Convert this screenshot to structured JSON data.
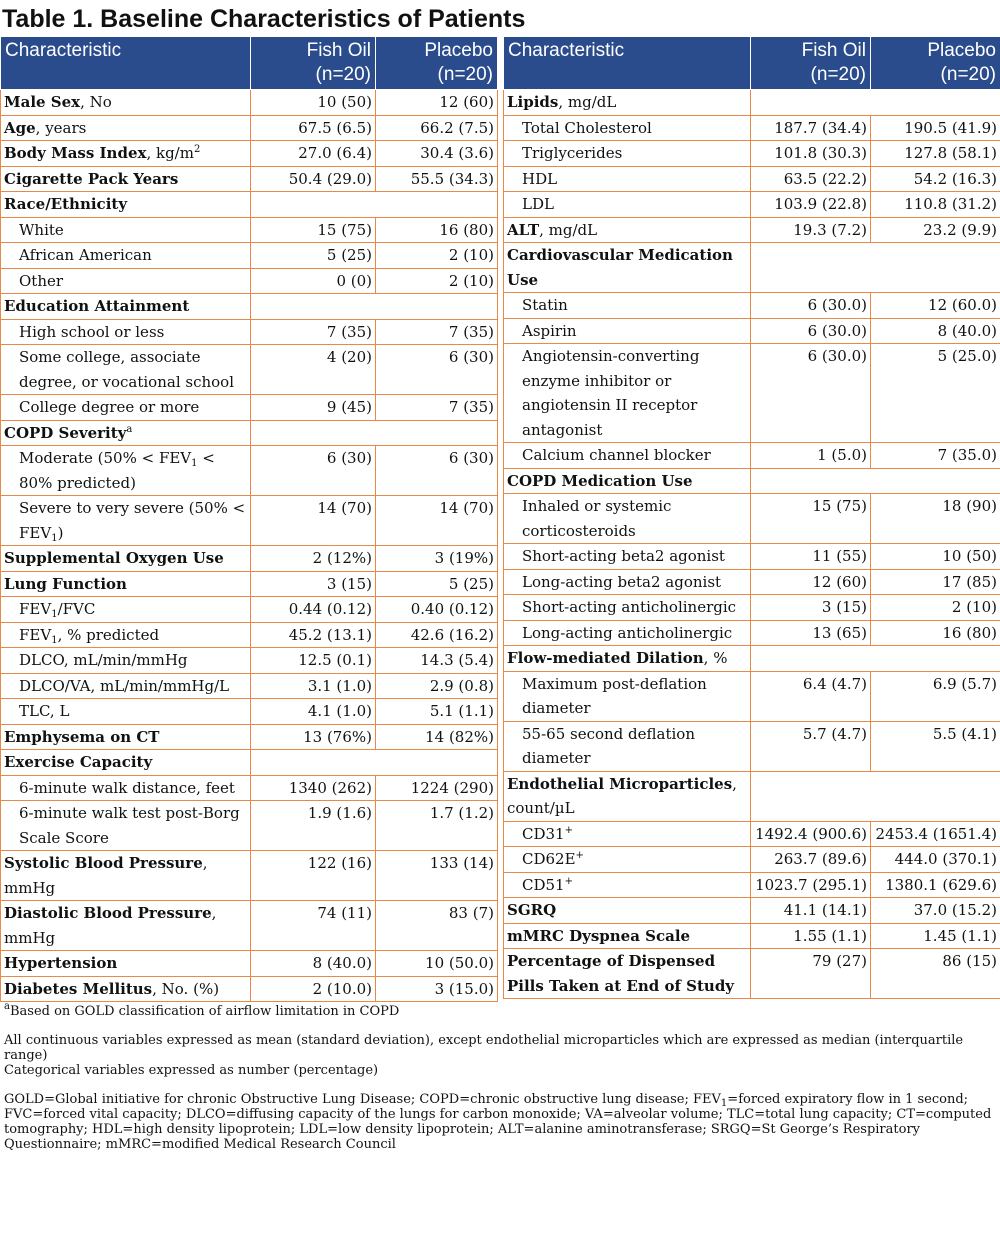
{
  "title": "Table 1. Baseline Characteristics of Patients",
  "header": [
    [
      "Characteristic"
    ],
    [
      "Fish Oil",
      "(n=20)"
    ],
    [
      "Placebo",
      "(n=20)"
    ]
  ],
  "tables": [
    {
      "rows": [
        {
          "label": [
            {
              "text": "Male Sex",
              "style": "bold"
            },
            {
              "text": ", No"
            }
          ],
          "values": [
            "10 (50)",
            "12 (60)"
          ]
        },
        {
          "label": [
            {
              "text": "Age",
              "style": "bold"
            },
            {
              "text": ", years"
            }
          ],
          "values": [
            "67.5 (6.5)",
            "66.2 (7.5)"
          ]
        },
        {
          "label": [
            {
              "text": "Body Mass Index",
              "style": "bold"
            },
            {
              "text": ", kg/m"
            },
            {
              "text": "2",
              "style": "sup"
            }
          ],
          "values": [
            "27.0 (6.4)",
            "30.4 (3.6)"
          ]
        },
        {
          "label": [
            {
              "text": "Cigarette Pack Years",
              "style": "bold"
            }
          ],
          "values": [
            "50.4 (29.0)",
            "55.5 (34.3)"
          ]
        },
        {
          "label": [
            {
              "text": "Race/Ethnicity",
              "style": "bold"
            }
          ]
        },
        {
          "indent": true,
          "label": [
            {
              "text": "White"
            }
          ],
          "values": [
            "15 (75)",
            "16 (80)"
          ]
        },
        {
          "indent": true,
          "label": [
            {
              "text": "African American"
            }
          ],
          "values": [
            "5 (25)",
            "2 (10)"
          ]
        },
        {
          "indent": true,
          "label": [
            {
              "text": "Other"
            }
          ],
          "values": [
            "0 (0)",
            "2 (10)"
          ]
        },
        {
          "label": [
            {
              "text": "Education Attainment",
              "style": "bold"
            }
          ]
        },
        {
          "indent": true,
          "label": [
            {
              "text": "High school or less"
            }
          ],
          "values": [
            "7 (35)",
            "7 (35)"
          ]
        },
        {
          "indent": true,
          "label": [
            {
              "text": "Some college, associate degree, or vocational school"
            }
          ],
          "values": [
            "4 (20)",
            "6 (30)"
          ]
        },
        {
          "indent": true,
          "label": [
            {
              "text": "College degree or more"
            }
          ],
          "values": [
            "9 (45)",
            "7 (35)"
          ]
        },
        {
          "label": [
            {
              "text": "COPD Severity",
              "style": "bold"
            },
            {
              "text": "a",
              "style": "sup"
            }
          ]
        },
        {
          "indent": true,
          "label": [
            {
              "text": "Moderate (50% < FEV"
            },
            {
              "text": "1",
              "style": "sub"
            },
            {
              "text": " < 80% predicted)"
            }
          ],
          "values": [
            "6 (30)",
            "6 (30)"
          ]
        },
        {
          "indent": true,
          "label": [
            {
              "text": "Severe to very severe (50% < FEV"
            },
            {
              "text": "1",
              "style": "sub"
            },
            {
              "text": ")"
            }
          ],
          "values": [
            "14 (70)",
            "14 (70)"
          ]
        },
        {
          "label": [
            {
              "text": "Supplemental Oxygen Use",
              "style": "bold"
            }
          ],
          "values": [
            "2 (12%)",
            "3 (19%)"
          ]
        },
        {
          "label": [
            {
              "text": "Lung Function",
              "style": "bold"
            }
          ],
          "values": [
            "3 (15)",
            "5 (25)"
          ]
        },
        {
          "indent": true,
          "label": [
            {
              "text": "FEV"
            },
            {
              "text": "1",
              "style": "sub"
            },
            {
              "text": "/FVC"
            }
          ],
          "values": [
            "0.44 (0.12)",
            "0.40 (0.12)"
          ]
        },
        {
          "indent": true,
          "label": [
            {
              "text": "FEV"
            },
            {
              "text": "1",
              "style": "sub"
            },
            {
              "text": ", % predicted"
            }
          ],
          "values": [
            "45.2 (13.1)",
            "42.6 (16.2)"
          ]
        },
        {
          "indent": true,
          "label": [
            {
              "text": "DLCO, mL/min/mmHg"
            }
          ],
          "values": [
            "12.5 (0.1)",
            "14.3 (5.4)"
          ]
        },
        {
          "indent": true,
          "label": [
            {
              "text": "DLCO/VA, mL/min/mmHg/L"
            }
          ],
          "values": [
            "3.1 (1.0)",
            "2.9 (0.8)"
          ]
        },
        {
          "indent": true,
          "label": [
            {
              "text": "TLC, L"
            }
          ],
          "values": [
            "4.1 (1.0)",
            "5.1 (1.1)"
          ]
        },
        {
          "label": [
            {
              "text": "Emphysema on CT",
              "style": "bold"
            }
          ],
          "values": [
            "13 (76%)",
            "14 (82%)"
          ]
        },
        {
          "label": [
            {
              "text": "Exercise Capacity",
              "style": "bold"
            }
          ]
        },
        {
          "indent": true,
          "label": [
            {
              "text": "6-minute walk distance, feet"
            }
          ],
          "values": [
            "1340 (262)",
            "1224 (290)"
          ]
        },
        {
          "indent": true,
          "label": [
            {
              "text": "6-minute walk test post-Borg Scale Score"
            }
          ],
          "values": [
            "1.9 (1.6)",
            "1.7 (1.2)"
          ]
        },
        {
          "label": [
            {
              "text": "Systolic Blood Pressure",
              "style": "bold"
            },
            {
              "text": ", mmHg"
            }
          ],
          "values": [
            "122 (16)",
            "133 (14)"
          ]
        },
        {
          "label": [
            {
              "text": "Diastolic Blood Pressure",
              "style": "bold"
            },
            {
              "text": ", mmHg"
            }
          ],
          "values": [
            "74 (11)",
            "83 (7)"
          ]
        },
        {
          "label": [
            {
              "text": "Hypertension",
              "style": "bold"
            }
          ],
          "values": [
            "8 (40.0)",
            "10 (50.0)"
          ]
        },
        {
          "label": [
            {
              "text": "Diabetes Mellitus",
              "style": "bold"
            },
            {
              "text": ", No. (%)"
            }
          ],
          "values": [
            "2 (10.0)",
            "3 (15.0)"
          ]
        }
      ]
    },
    {
      "rows": [
        {
          "label": [
            {
              "text": "Lipids",
              "style": "bold"
            },
            {
              "text": ", mg/dL"
            }
          ]
        },
        {
          "indent": true,
          "label": [
            {
              "text": "Total Cholesterol"
            }
          ],
          "values": [
            "187.7 (34.4)",
            "190.5 (41.9)"
          ]
        },
        {
          "indent": true,
          "label": [
            {
              "text": "Triglycerides"
            }
          ],
          "values": [
            "101.8 (30.3)",
            "127.8 (58.1)"
          ]
        },
        {
          "indent": true,
          "label": [
            {
              "text": "HDL"
            }
          ],
          "values": [
            "63.5 (22.2)",
            "54.2 (16.3)"
          ]
        },
        {
          "indent": true,
          "label": [
            {
              "text": "LDL"
            }
          ],
          "values": [
            "103.9 (22.8)",
            "110.8 (31.2)"
          ]
        },
        {
          "label": [
            {
              "text": "ALT",
              "style": "bold"
            },
            {
              "text": ", mg/dL"
            }
          ],
          "values": [
            "19.3 (7.2)",
            "23.2 (9.9)"
          ]
        },
        {
          "label": [
            {
              "text": "Cardiovascular Medication Use",
              "style": "bold"
            }
          ]
        },
        {
          "indent": true,
          "label": [
            {
              "text": "Statin"
            }
          ],
          "values": [
            "6 (30.0)",
            "12 (60.0)"
          ]
        },
        {
          "indent": true,
          "label": [
            {
              "text": "Aspirin"
            }
          ],
          "values": [
            "6 (30.0)",
            "8 (40.0)"
          ]
        },
        {
          "indent": true,
          "label": [
            {
              "text": "Angiotensin-converting enzyme inhibitor or angiotensin II receptor antagonist"
            }
          ],
          "values": [
            "6 (30.0)",
            "5 (25.0)"
          ]
        },
        {
          "indent": true,
          "label": [
            {
              "text": "Calcium channel blocker"
            }
          ],
          "values": [
            "1 (5.0)",
            "7 (35.0)"
          ]
        },
        {
          "label": [
            {
              "text": "COPD Medication Use",
              "style": "bold"
            }
          ]
        },
        {
          "indent": true,
          "label": [
            {
              "text": "Inhaled or systemic corticosteroids"
            }
          ],
          "values": [
            "15 (75)",
            "18 (90)"
          ]
        },
        {
          "indent": true,
          "label": [
            {
              "text": "Short-acting beta2 agonist"
            }
          ],
          "values": [
            "11 (55)",
            "10 (50)"
          ]
        },
        {
          "indent": true,
          "label": [
            {
              "text": "Long-acting beta2 agonist"
            }
          ],
          "values": [
            "12 (60)",
            "17 (85)"
          ]
        },
        {
          "indent": true,
          "label": [
            {
              "text": "Short-acting anticholinergic"
            }
          ],
          "values": [
            "3 (15)",
            "2 (10)"
          ]
        },
        {
          "indent": true,
          "label": [
            {
              "text": "Long-acting anticholinergic"
            }
          ],
          "values": [
            "13 (65)",
            "16 (80)"
          ]
        },
        {
          "label": [
            {
              "text": "Flow-mediated Dilation",
              "style": "bold"
            },
            {
              "text": ", %"
            }
          ]
        },
        {
          "indent": true,
          "label": [
            {
              "text": "Maximum post-deflation diameter"
            }
          ],
          "values": [
            "6.4 (4.7)",
            "6.9 (5.7)"
          ]
        },
        {
          "indent": true,
          "label": [
            {
              "text": "55-65 second deflation diameter"
            }
          ],
          "values": [
            "5.7 (4.7)",
            "5.5 (4.1)"
          ]
        },
        {
          "label": [
            {
              "text": "Endothelial Microparticles",
              "style": "bold"
            },
            {
              "text": ", count/µL"
            }
          ]
        },
        {
          "indent": true,
          "label": [
            {
              "text": "CD31"
            },
            {
              "text": "+",
              "style": "sup"
            }
          ],
          "values": [
            "1492.4 (900.6)",
            "2453.4 (1651.4)"
          ]
        },
        {
          "indent": true,
          "label": [
            {
              "text": "CD62E"
            },
            {
              "text": "+",
              "style": "sup"
            }
          ],
          "values": [
            "263.7 (89.6)",
            "444.0 (370.1)"
          ]
        },
        {
          "indent": true,
          "label": [
            {
              "text": "CD51"
            },
            {
              "text": "+",
              "style": "sup"
            }
          ],
          "values": [
            "1023.7 (295.1)",
            "1380.1 (629.6)"
          ]
        },
        {
          "label": [
            {
              "text": "SGRQ",
              "style": "bold"
            }
          ],
          "values": [
            "41.1 (14.1)",
            "37.0 (15.2)"
          ]
        },
        {
          "label": [
            {
              "text": "mMRC Dyspnea Scale",
              "style": "bold"
            }
          ],
          "values": [
            "1.55 (1.1)",
            "1.45 (1.1)"
          ]
        },
        {
          "label": [
            {
              "text": "Percentage of Dispensed Pills Taken at End of Study",
              "style": "bold"
            }
          ],
          "values": [
            "79 (27)",
            "86 (15)"
          ]
        }
      ]
    }
  ],
  "notes": [
    [
      {
        "text": "a",
        "style": "sup"
      },
      {
        "text": "Based on GOLD classification of airflow limitation in COPD"
      }
    ],
    [
      {
        "text": "All continuous variables expressed as mean (standard deviation), except endothelial microparticles which are expressed as median (interquartile range)"
      }
    ],
    [
      {
        "text": "Categorical variables expressed as number (percentage)"
      }
    ],
    [
      {
        "text": "GOLD=Global initiative for chronic Obstructive Lung Disease; COPD=chronic obstructive lung disease; FEV"
      },
      {
        "text": "1",
        "style": "sub"
      },
      {
        "text": "=forced expiratory flow in 1 second; FVC=forced vital capacity; DLCO=diffusing capacity of the lungs for carbon monoxide; VA=alveolar volume; TLC=total lung capacity; CT=computed tomography; HDL=high density lipoprotein; LDL=low density lipoprotein; ALT=alanine aminotransferase; SRGQ=St George’s Respiratory Questionnaire; mMRC=modified Medical Research Council"
      }
    ]
  ]
}
